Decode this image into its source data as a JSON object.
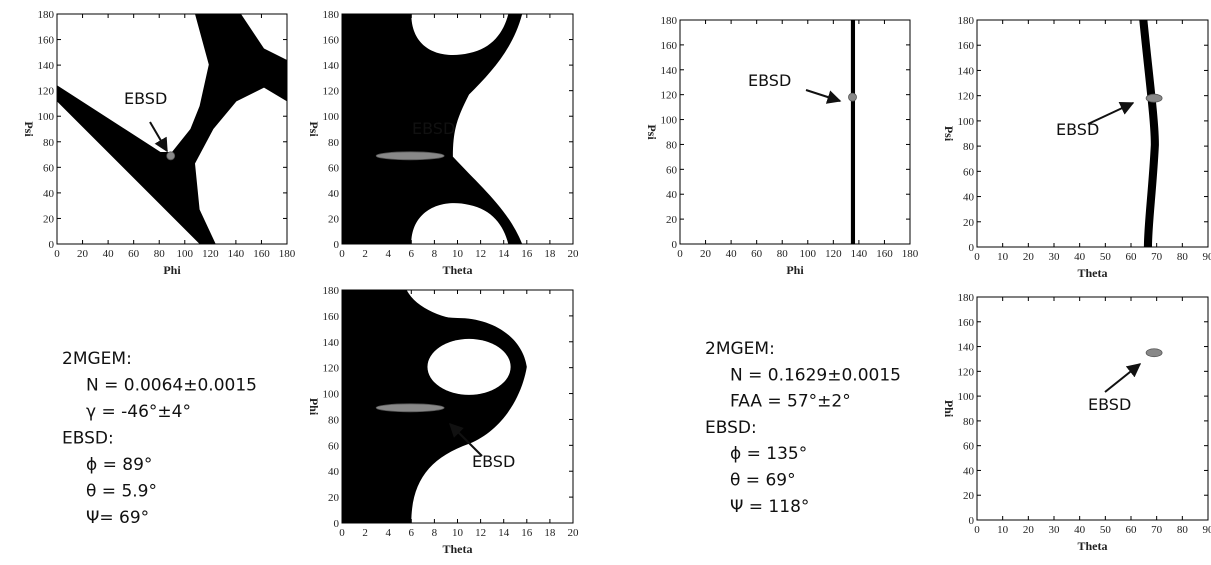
{
  "chart_data": [
    {
      "type": "region",
      "xlabel": "Phi",
      "ylabel": "Psi",
      "xlim": [
        0,
        180
      ],
      "ylim": [
        0,
        180
      ],
      "xticks": [
        0,
        20,
        40,
        60,
        80,
        100,
        120,
        140,
        160,
        180
      ],
      "yticks": [
        0,
        20,
        40,
        60,
        80,
        100,
        120,
        140,
        160,
        180
      ],
      "annotation": "EBSD",
      "marker": {
        "x": 89,
        "y": 69
      }
    },
    {
      "type": "region",
      "xlabel": "Theta",
      "ylabel": "Psi",
      "xlim": [
        0,
        20
      ],
      "ylim": [
        0,
        180
      ],
      "xticks": [
        0,
        2,
        4,
        6,
        8,
        10,
        12,
        14,
        16,
        18,
        20
      ],
      "yticks": [
        0,
        20,
        40,
        60,
        80,
        100,
        120,
        140,
        160,
        180
      ],
      "annotation": "EBSD",
      "marker": {
        "x": 5.9,
        "y": 69
      }
    },
    {
      "type": "region",
      "xlabel": "Theta",
      "ylabel": "Phi",
      "xlim": [
        0,
        20
      ],
      "ylim": [
        0,
        180
      ],
      "xticks": [
        0,
        2,
        4,
        6,
        8,
        10,
        12,
        14,
        16,
        18,
        20
      ],
      "yticks": [
        0,
        20,
        40,
        60,
        80,
        100,
        120,
        140,
        160,
        180
      ],
      "annotation": "EBSD",
      "marker": {
        "x": 5.9,
        "y": 89
      }
    },
    {
      "type": "region",
      "xlabel": "Phi",
      "ylabel": "Psi",
      "xlim": [
        0,
        180
      ],
      "ylim": [
        0,
        180
      ],
      "xticks": [
        0,
        20,
        40,
        60,
        80,
        100,
        120,
        140,
        160,
        180
      ],
      "yticks": [
        0,
        20,
        40,
        60,
        80,
        100,
        120,
        140,
        160,
        180
      ],
      "annotation": "EBSD",
      "marker": {
        "x": 135,
        "y": 118
      }
    },
    {
      "type": "region",
      "xlabel": "Theta",
      "ylabel": "Psi",
      "xlim": [
        0,
        90
      ],
      "ylim": [
        0,
        180
      ],
      "xticks": [
        0,
        10,
        20,
        30,
        40,
        50,
        60,
        70,
        80,
        90
      ],
      "yticks": [
        0,
        20,
        40,
        60,
        80,
        100,
        120,
        140,
        160,
        180
      ],
      "annotation": "EBSD",
      "marker": {
        "x": 69,
        "y": 118
      }
    },
    {
      "type": "region",
      "xlabel": "Theta",
      "ylabel": "Phi",
      "xlim": [
        0,
        90
      ],
      "ylim": [
        0,
        180
      ],
      "xticks": [
        0,
        10,
        20,
        30,
        40,
        50,
        60,
        70,
        80,
        90
      ],
      "yticks": [
        0,
        20,
        40,
        60,
        80,
        100,
        120,
        140,
        160,
        180
      ],
      "annotation": "EBSD",
      "marker": {
        "x": 69,
        "y": 135
      }
    }
  ],
  "text_blocks": [
    [
      "2MGEM:",
      "N = 0.0064±0.0015",
      "γ = -46°±4°",
      "EBSD:",
      "ϕ = 89°",
      "θ = 5.9°",
      "Ψ= 69°"
    ],
    [
      "2MGEM:",
      "N = 0.1629±0.0015",
      "FAA = 57°±2°",
      "EBSD:",
      "ϕ = 135°",
      "θ  = 69°",
      "Ψ = 118°"
    ]
  ]
}
